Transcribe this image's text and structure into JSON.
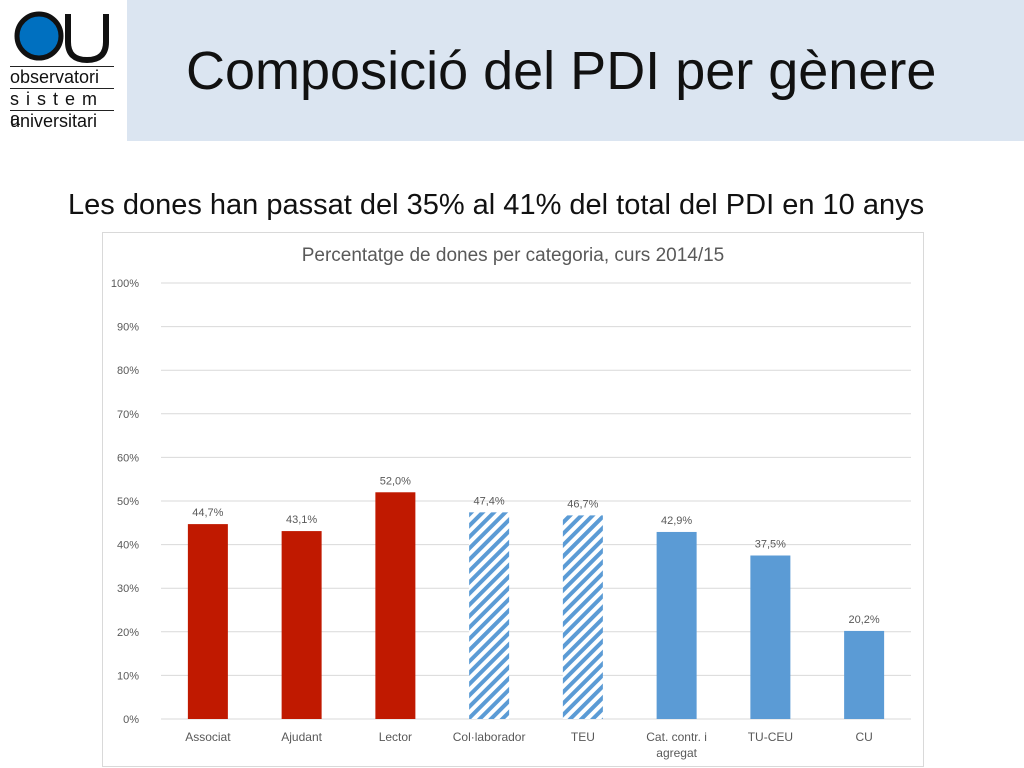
{
  "logo": {
    "mark": "OU",
    "lines": [
      "observatori",
      "s i s t e m a",
      "universitari"
    ]
  },
  "slide": {
    "title": "Composició del PDI per gènere",
    "subtitle": "Les dones han passat del 35% al 41% del total del PDI en 10 anys"
  },
  "colors": {
    "title_band": "#dbe5f1",
    "red": "#c01900",
    "blue": "#5b9bd5",
    "grid": "#d9d9d9",
    "text": "#595959"
  },
  "chart_data": {
    "type": "bar",
    "title": "Percentatge de dones per categoria, curs 2014/15",
    "xlabel": "",
    "ylabel": "",
    "ylim": [
      0,
      100
    ],
    "yticks": [
      "0%",
      "10%",
      "20%",
      "30%",
      "40%",
      "50%",
      "60%",
      "70%",
      "80%",
      "90%",
      "100%"
    ],
    "grid": true,
    "categories": [
      "Associat",
      "Ajudant",
      "Lector",
      "Col·laborador",
      "TEU",
      "Cat. contr. i agregat",
      "TU-CEU",
      "CU"
    ],
    "values": [
      44.7,
      43.1,
      52.0,
      47.4,
      46.7,
      42.9,
      37.5,
      20.2
    ],
    "data_labels": [
      "44,7%",
      "43,1%",
      "52,0%",
      "47,4%",
      "46,7%",
      "42,9%",
      "37,5%",
      "20,2%"
    ],
    "bar_styles": [
      "red",
      "red",
      "red",
      "blue-hatched",
      "blue-hatched",
      "blue",
      "blue",
      "blue"
    ]
  }
}
